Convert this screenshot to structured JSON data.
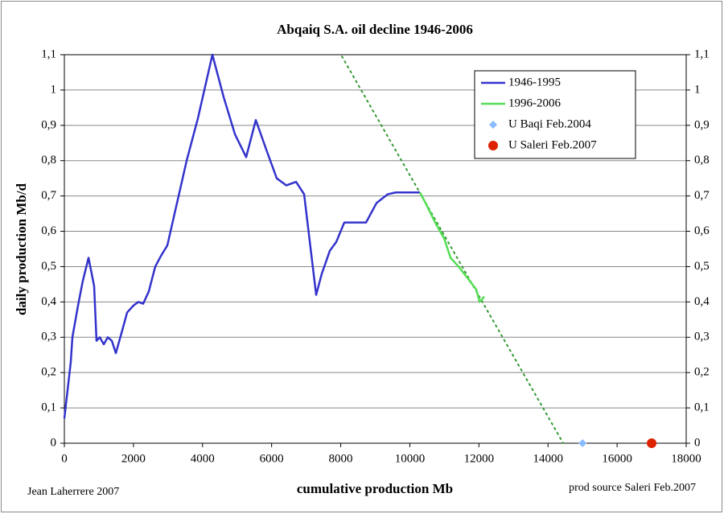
{
  "chart_data": {
    "type": "line",
    "title": "Abqaiq S.A. oil decline 1946-2006",
    "xlabel": "cumulative production Mb",
    "ylabel": "daily production Mb/d",
    "annotations": [
      "Jean Laherrere 2007",
      "prod source Saleri Feb.2007"
    ],
    "xlim": [
      0,
      18000
    ],
    "xticks": [
      0,
      2000,
      4000,
      6000,
      8000,
      10000,
      12000,
      14000,
      16000,
      18000
    ],
    "ylim": [
      0,
      1.1
    ],
    "yticks": [
      0,
      {
        "value": 0.1,
        "label": "0,1"
      },
      {
        "value": 0.2,
        "label": "0,2"
      },
      {
        "value": 0.3,
        "label": "0,3"
      },
      {
        "value": 0.4,
        "label": "0,4"
      },
      {
        "value": 0.5,
        "label": "0,5"
      },
      {
        "value": 0.6,
        "label": "0,6"
      },
      {
        "value": 0.7,
        "label": "0,7"
      },
      {
        "value": 0.8,
        "label": "0,8"
      },
      {
        "value": 0.9,
        "label": "0,9"
      },
      1,
      {
        "value": 1.1,
        "label": "1,1"
      }
    ],
    "y2lim": [
      0,
      1.1
    ],
    "y2ticks": [
      0,
      {
        "value": 0.1,
        "label": "0,1"
      },
      {
        "value": 0.2,
        "label": "0,2"
      },
      {
        "value": 0.3,
        "label": "0,3"
      },
      {
        "value": 0.4,
        "label": "0,4"
      },
      {
        "value": 0.5,
        "label": "0,5"
      },
      {
        "value": 0.6,
        "label": "0,6"
      },
      {
        "value": 0.7,
        "label": "0,7"
      },
      {
        "value": 0.8,
        "label": "0,8"
      },
      {
        "value": 0.9,
        "label": "0,9"
      },
      1,
      {
        "value": 1.1,
        "label": "1,1"
      }
    ],
    "grid": true,
    "legend": "upper right",
    "series": [
      {
        "name": "1946-1995",
        "color": "#3333cc",
        "marker": "line",
        "x": [
          0,
          186,
          233,
          396,
          535,
          700,
          862,
          931,
          1025,
          1141,
          1258,
          1374,
          1490,
          1677,
          1816,
          2003,
          2142,
          2282,
          2445,
          2631,
          2794,
          2981,
          3167,
          3540,
          3866,
          4285,
          4611,
          4937,
          5263,
          5542,
          5868,
          6148,
          6427,
          6707,
          6940,
          7289,
          7452,
          7685,
          7871,
          8104,
          8733,
          9036,
          9362,
          9595,
          10294
        ],
        "values": [
          0.07,
          0.23,
          0.3,
          0.39,
          0.46,
          0.525,
          0.445,
          0.29,
          0.3,
          0.28,
          0.3,
          0.29,
          0.255,
          0.32,
          0.37,
          0.39,
          0.4,
          0.395,
          0.43,
          0.5,
          0.53,
          0.56,
          0.64,
          0.8,
          0.92,
          1.1,
          0.98,
          0.875,
          0.81,
          0.915,
          0.825,
          0.75,
          0.73,
          0.74,
          0.705,
          0.42,
          0.48,
          0.545,
          0.57,
          0.625,
          0.625,
          0.68,
          0.705,
          0.71,
          0.71
        ]
      },
      {
        "name": "1996-2006",
        "color": "#55dd55",
        "marker": "line",
        "x": [
          10294,
          10480,
          10760,
          10993,
          11179,
          11412,
          11692,
          11925,
          12018,
          12158
        ],
        "values": [
          0.71,
          0.675,
          0.62,
          0.58,
          0.525,
          0.5,
          0.465,
          0.435,
          0.4,
          0.415
        ]
      },
      {
        "name": "U Baqi Feb.2004",
        "color": "#88bbff",
        "marker": "diamond",
        "x": [
          15000
        ],
        "values": [
          0
        ]
      },
      {
        "name": "U Saleri Feb.2007",
        "color": "#dd2200",
        "marker": "circle",
        "x": [
          17000
        ],
        "values": [
          0
        ]
      }
    ],
    "trendline": {
      "color": "#339933",
      "x": [
        8035,
        14440
      ],
      "values": [
        1.095,
        0
      ]
    }
  }
}
